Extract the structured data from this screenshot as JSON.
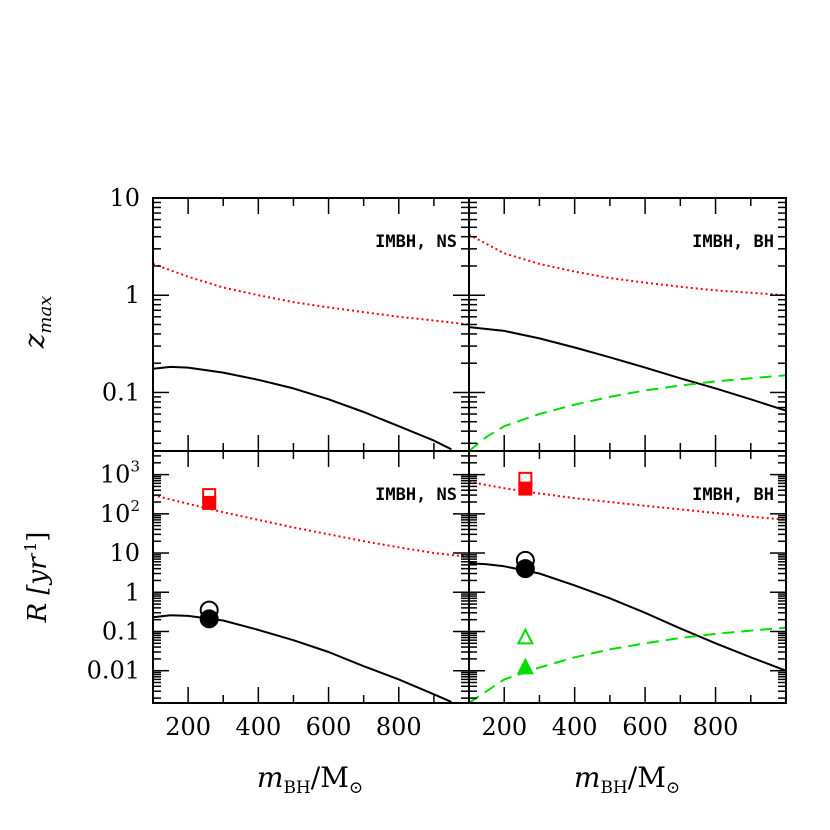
{
  "chart_data": {
    "type": "line",
    "layout": "2x2 panels, shared x axis, log y axis",
    "x": {
      "label_main": "m",
      "label_sub": "BH",
      "label_unit": "/M",
      "label_unit_sub": "⊙",
      "range": [
        100,
        1000
      ],
      "ticks": [
        200,
        400,
        600,
        800
      ],
      "tick_labels": [
        "200",
        "400",
        "600",
        "800"
      ]
    },
    "rows": [
      {
        "id": "zmax",
        "ylabel_main": "z",
        "ylabel_sub": "max",
        "scale": "log",
        "ylim": [
          0.025,
          10
        ],
        "major_ticks": [
          0.1,
          1,
          10
        ],
        "tick_labels": [
          "0.1",
          "1",
          "10"
        ]
      },
      {
        "id": "rate",
        "ylabel": "R  [yr",
        "ylabel_sup": "-1",
        "ylabel_close": "]",
        "scale": "log",
        "ylim": [
          0.0015,
          4000
        ],
        "major_ticks": [
          0.01,
          0.1,
          1,
          10,
          100,
          1000
        ],
        "tick_labels": [
          "0.01",
          "0.1",
          "1",
          "10",
          "10",
          "10"
        ],
        "tick_label_sups": [
          "",
          "",
          "",
          "",
          "2",
          "3"
        ]
      }
    ],
    "panels": [
      {
        "row": "zmax",
        "col": 0,
        "label": "IMBH, NS",
        "series": [
          {
            "color": "#ff0000",
            "style": "dotted",
            "x": [
              100,
              200,
              300,
              400,
              500,
              600,
              700,
              800,
              900,
              1000
            ],
            "y": [
              2.1,
              1.55,
              1.2,
              1.0,
              0.85,
              0.75,
              0.67,
              0.6,
              0.55,
              0.5
            ]
          },
          {
            "color": "#000000",
            "style": "solid",
            "x": [
              100,
              150,
              200,
              300,
              400,
              500,
              600,
              700,
              800,
              900,
              950
            ],
            "y": [
              0.175,
              0.183,
              0.18,
              0.16,
              0.135,
              0.11,
              0.085,
              0.063,
              0.045,
              0.032,
              0.026
            ]
          }
        ],
        "markers": []
      },
      {
        "row": "zmax",
        "col": 1,
        "label": "IMBH, BH",
        "series": [
          {
            "color": "#ff0000",
            "style": "dotted",
            "x": [
              100,
              200,
              300,
              400,
              500,
              600,
              700,
              800,
              900,
              1000
            ],
            "y": [
              4.2,
              2.7,
              2.1,
              1.75,
              1.5,
              1.35,
              1.22,
              1.12,
              1.06,
              1.0
            ]
          },
          {
            "color": "#000000",
            "style": "solid",
            "x": [
              100,
              200,
              300,
              400,
              500,
              600,
              700,
              800,
              900,
              1000
            ],
            "y": [
              0.47,
              0.43,
              0.36,
              0.29,
              0.23,
              0.18,
              0.14,
              0.11,
              0.085,
              0.065
            ]
          },
          {
            "color": "#00dd00",
            "style": "dashed",
            "x": [
              100,
              150,
              200,
              300,
              400,
              500,
              600,
              700,
              800,
              900,
              1000
            ],
            "y": [
              0.025,
              0.035,
              0.045,
              0.06,
              0.075,
              0.09,
              0.105,
              0.118,
              0.13,
              0.14,
              0.15
            ]
          }
        ],
        "markers": []
      },
      {
        "row": "rate",
        "col": 0,
        "label": "IMBH, NS",
        "series": [
          {
            "color": "#ff0000",
            "style": "dotted",
            "x": [
              100,
              200,
              300,
              400,
              500,
              600,
              700,
              800,
              900,
              1000
            ],
            "y": [
              300,
              180,
              110,
              70,
              45,
              30,
              20,
              14,
              10,
              8
            ]
          },
          {
            "color": "#000000",
            "style": "solid",
            "x": [
              100,
              150,
              200,
              300,
              400,
              500,
              600,
              700,
              800,
              900,
              950
            ],
            "y": [
              0.23,
              0.26,
              0.25,
              0.19,
              0.11,
              0.06,
              0.03,
              0.013,
              0.006,
              0.0025,
              0.0016
            ]
          }
        ],
        "markers": [
          {
            "x": 260,
            "y": 300,
            "shape": "square",
            "filled": false,
            "color": "#ff0000"
          },
          {
            "x": 260,
            "y": 190,
            "shape": "square",
            "filled": true,
            "color": "#ff0000"
          },
          {
            "x": 260,
            "y": 0.35,
            "shape": "circle",
            "filled": false,
            "color": "#000000"
          },
          {
            "x": 260,
            "y": 0.21,
            "shape": "circle",
            "filled": true,
            "color": "#000000"
          }
        ]
      },
      {
        "row": "rate",
        "col": 1,
        "label": "IMBH, BH",
        "series": [
          {
            "color": "#ff0000",
            "style": "dotted",
            "x": [
              100,
              200,
              300,
              400,
              500,
              600,
              700,
              800,
              900,
              1000
            ],
            "y": [
              650,
              450,
              330,
              250,
              200,
              160,
              130,
              105,
              85,
              70
            ]
          },
          {
            "color": "#000000",
            "style": "solid",
            "x": [
              100,
              150,
              200,
              300,
              400,
              500,
              600,
              700,
              800,
              900,
              1000
            ],
            "y": [
              5.5,
              5.2,
              4.6,
              3.0,
              1.5,
              0.7,
              0.3,
              0.12,
              0.05,
              0.022,
              0.01
            ]
          },
          {
            "color": "#00dd00",
            "style": "dashed",
            "x": [
              100,
              150,
              200,
              300,
              400,
              500,
              600,
              700,
              800,
              900,
              1000
            ],
            "y": [
              0.0015,
              0.003,
              0.006,
              0.012,
              0.022,
              0.035,
              0.05,
              0.068,
              0.087,
              0.105,
              0.125
            ]
          }
        ],
        "markers": [
          {
            "x": 260,
            "y": 780,
            "shape": "square",
            "filled": false,
            "color": "#ff0000"
          },
          {
            "x": 260,
            "y": 440,
            "shape": "square",
            "filled": true,
            "color": "#ff0000"
          },
          {
            "x": 260,
            "y": 6.5,
            "shape": "circle",
            "filled": false,
            "color": "#000000"
          },
          {
            "x": 260,
            "y": 4.0,
            "shape": "circle",
            "filled": true,
            "color": "#000000"
          },
          {
            "x": 260,
            "y": 0.07,
            "shape": "triangle",
            "filled": false,
            "color": "#00dd00"
          },
          {
            "x": 260,
            "y": 0.012,
            "shape": "triangle",
            "filled": true,
            "color": "#00dd00"
          }
        ]
      }
    ],
    "grid": false,
    "legend": "none"
  }
}
